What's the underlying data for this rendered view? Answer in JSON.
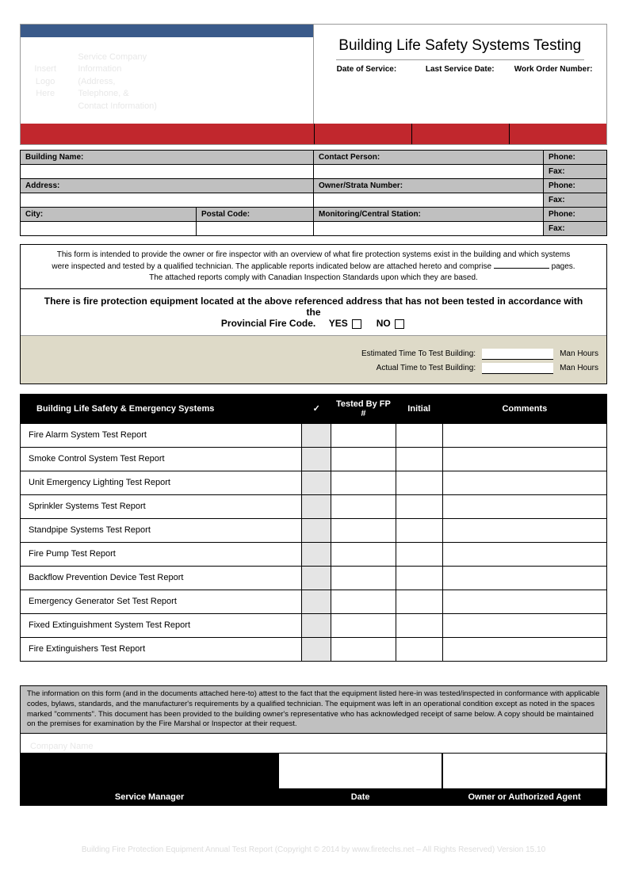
{
  "header": {
    "logo_placeholder": "Insert Logo Here",
    "company_placeholder": "Service Company Information\n(Address, Telephone, & Contact Information)",
    "title": "Building Life Safety Systems Testing",
    "service_labels": {
      "date_of_service": "Date of Service:",
      "last_service": "Last Service Date:",
      "work_order": "Work Order Number:"
    }
  },
  "info": {
    "building_name": "Building Name:",
    "contact_person": "Contact Person:",
    "phone": "Phone:",
    "fax": "Fax:",
    "address": "Address:",
    "owner_strata": "Owner/Strata Number:",
    "city": "City:",
    "postal": "Postal Code:",
    "monitoring": "Monitoring/Central Station:"
  },
  "intro": {
    "line1": "This form is intended to provide the owner or fire inspector with an overview of what fire protection systems exist in the building and which systems",
    "line2": "were inspected and tested by a qualified technician.  The applicable reports indicated below are attached hereto and comprise",
    "pages_suffix": "pages.",
    "line3": "The attached reports comply with Canadian Inspection Standards upon which they are based.",
    "compliance_l1": "There is fire protection equipment located at the above referenced address that has not been tested in accordance with the",
    "compliance_l2": "Provincial Fire Code.",
    "yes": "YES",
    "no": "NO",
    "est_label": "Estimated  Time To Test Building:",
    "act_label": "Actual Time to Test  Building:",
    "manhours": "Man Hours"
  },
  "systems": {
    "columns": {
      "name": "Building Life Safety & Emergency Systems",
      "check": "✓",
      "tested": "Tested By FP #",
      "initial": "Initial",
      "comments": "Comments"
    },
    "rows": [
      "Fire Alarm System Test Report",
      "Smoke Control System Test Report",
      "Unit Emergency Lighting Test Report",
      "Sprinkler Systems Test Report",
      "Standpipe Systems Test Report",
      "Fire Pump Test Report",
      "Backflow Prevention Device Test Report",
      "Emergency  Generator Set Test Report",
      "Fixed Extinguishment System Test Report",
      "Fire Extinguishers Test Report"
    ]
  },
  "disclaimer": "The information on this form (and in the documents attached here-to) attest to the fact that the equipment listed here-in was tested/inspected in conformance with applicable codes, bylaws, standards, and the manufacturer's requirements by a qualified technician.  The equipment was left in an operational condition except as noted in the spaces marked \"comments\".  This document has been provided to the building owner's representative who has acknowledged receipt of same below.  A copy should be maintained on the premises for examination by the Fire Marshal or Inspector at their request.",
  "signature": {
    "company_ghost": "Company Name",
    "service_manager": "Service Manager",
    "date": "Date",
    "owner": "Owner or Authorized Agent"
  },
  "footer": "Building Fire Protection Equipment Annual Test Report (Copyright © 2014 by www.firetechs.net – All Rights Reserved) Version 15.10"
}
